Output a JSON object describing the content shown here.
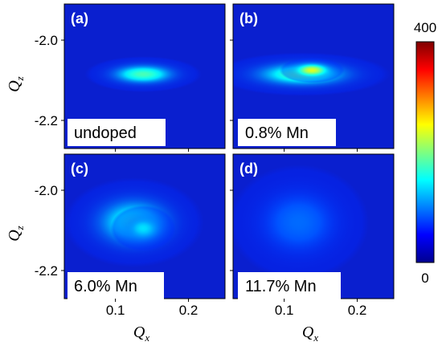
{
  "chart_data": {
    "type": "heatmap",
    "layout": "2x2 panels, shared axes",
    "x_axis": {
      "label": "Q",
      "label_sub": "x",
      "range": [
        0.03,
        0.25
      ],
      "ticks": [
        0.1,
        0.2
      ],
      "tick_labels": [
        "0.1",
        "0.2"
      ]
    },
    "y_axis": {
      "label": "Q",
      "label_sub": "z",
      "range": [
        -2.27,
        -1.91
      ],
      "ticks": [
        -2.0,
        -2.2
      ],
      "tick_labels": [
        "-2.0",
        "-2.2"
      ]
    },
    "colorbar": {
      "min": 0,
      "max": 400,
      "min_label": "0",
      "max_label": "400",
      "colormap": "jet"
    },
    "panels": [
      {
        "letter": "(a)",
        "sample": "undoped",
        "peaks": [
          {
            "qx": 0.138,
            "qz": -2.085,
            "sigma_x": 0.05,
            "sigma_z": 0.028,
            "intensity": 115
          }
        ]
      },
      {
        "letter": "(b)",
        "sample": "0.8% Mn",
        "peaks": [
          {
            "qx": 0.125,
            "qz": -2.085,
            "sigma_x": 0.075,
            "sigma_z": 0.034,
            "intensity": 120
          },
          {
            "qx": 0.138,
            "qz": -2.075,
            "sigma_x": 0.028,
            "sigma_z": 0.02,
            "intensity": 175
          }
        ]
      },
      {
        "letter": "(c)",
        "sample": "6.0% Mn",
        "peaks": [
          {
            "qx": 0.125,
            "qz": -2.08,
            "sigma_x": 0.06,
            "sigma_z": 0.07,
            "intensity": 95
          },
          {
            "qx": 0.138,
            "qz": -2.095,
            "sigma_x": 0.028,
            "sigma_z": 0.036,
            "intensity": 75
          }
        ]
      },
      {
        "letter": "(d)",
        "sample": "11.7% Mn",
        "peaks": [
          {
            "qx": 0.12,
            "qz": -2.08,
            "sigma_x": 0.06,
            "sigma_z": 0.09,
            "intensity": 28
          }
        ]
      }
    ]
  }
}
